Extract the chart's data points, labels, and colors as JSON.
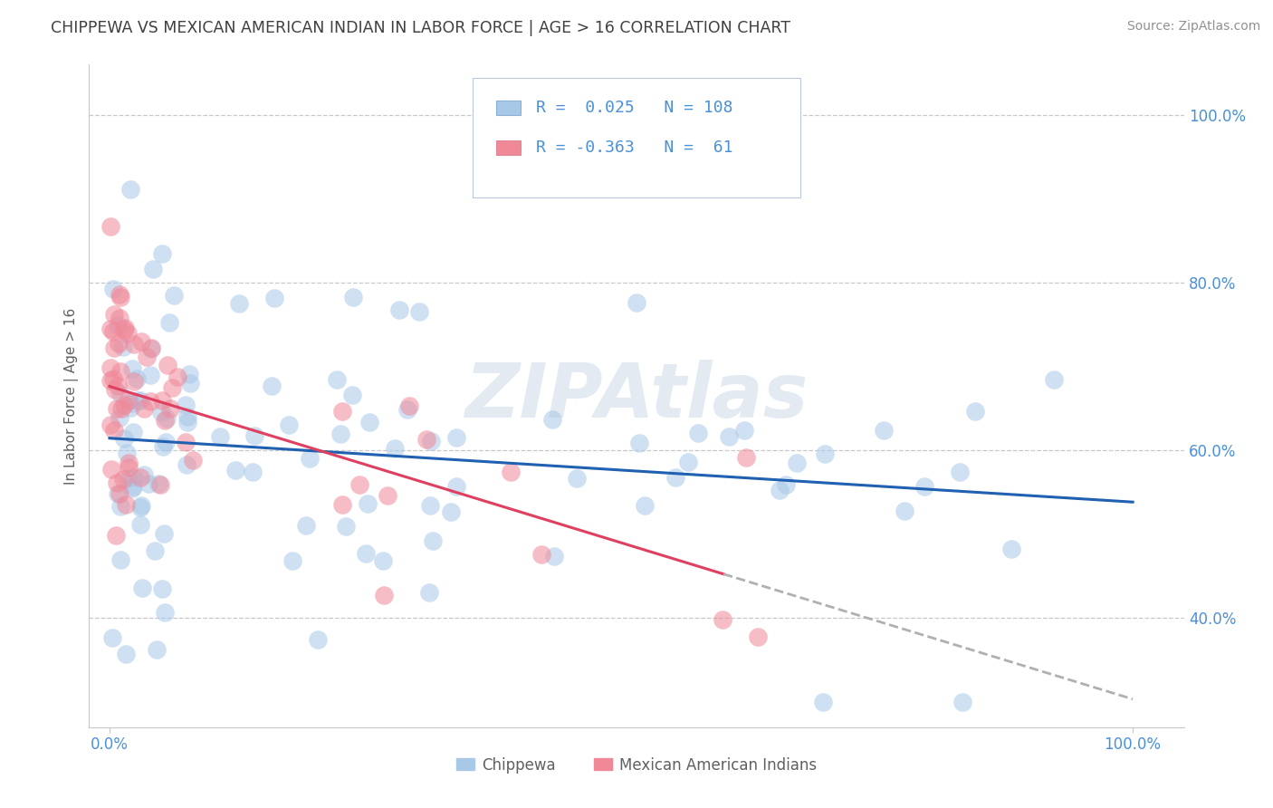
{
  "title": "CHIPPEWA VS MEXICAN AMERICAN INDIAN IN LABOR FORCE | AGE > 16 CORRELATION CHART",
  "source": "Source: ZipAtlas.com",
  "ylabel": "In Labor Force | Age > 16",
  "xlim": [
    -0.02,
    1.05
  ],
  "ylim": [
    0.27,
    1.06
  ],
  "yticks": [
    0.4,
    0.6,
    0.8,
    1.0
  ],
  "ytick_labels": [
    "40.0%",
    "60.0%",
    "80.0%",
    "100.0%"
  ],
  "xtick_labels": [
    "0.0%",
    "100.0%"
  ],
  "chippewa_R": 0.025,
  "chippewa_N": 108,
  "mexican_R": -0.363,
  "mexican_N": 61,
  "chippewa_color": "#a8c8e8",
  "mexican_color": "#f08898",
  "chippewa_line_color": "#2060b0",
  "mexican_line_color": "#e04060",
  "dashed_line_color": "#b0b0b0",
  "background_color": "#ffffff",
  "grid_color": "#c8c8c8",
  "watermark": "ZIPAtlas",
  "tick_color": "#4a90d9",
  "title_color": "#404040",
  "source_color": "#909090",
  "label_color": "#606060"
}
